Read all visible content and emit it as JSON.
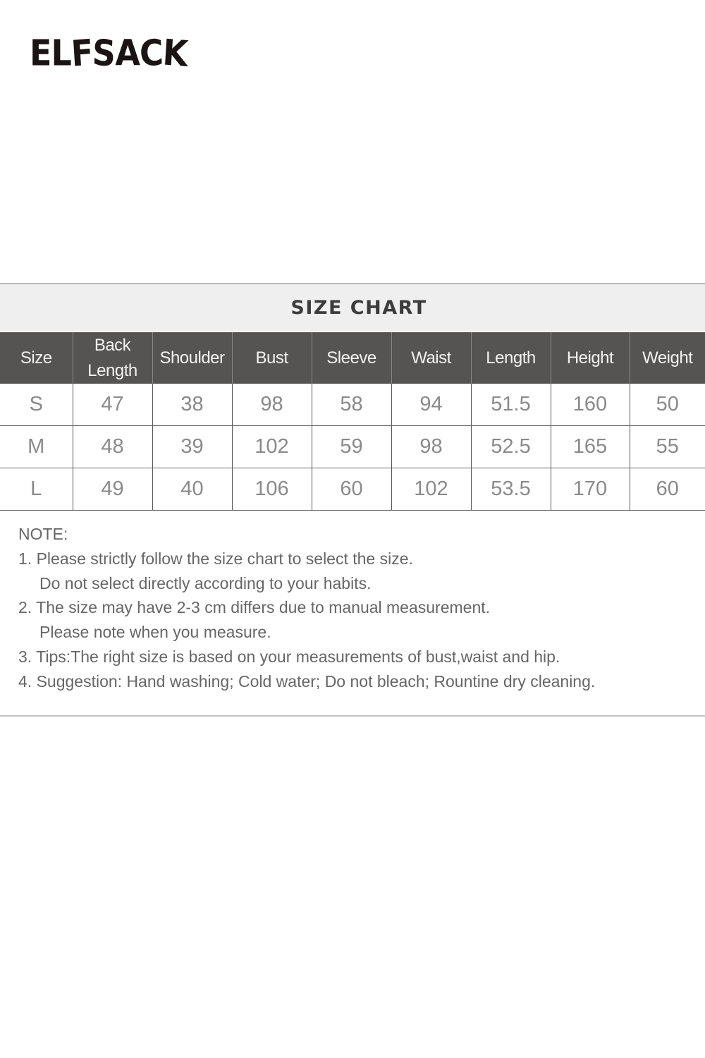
{
  "brand": {
    "logo_text": "ELFSACK"
  },
  "chart": {
    "title": "SIZE CHART",
    "headers": [
      "Size",
      "Back Length",
      "Shoulder",
      "Bust",
      "Sleeve",
      "Waist",
      "Length",
      "Height",
      "Weight"
    ],
    "rows": [
      [
        "S",
        "47",
        "38",
        "98",
        "58",
        "94",
        "51.5",
        "160",
        "50"
      ],
      [
        "M",
        "48",
        "39",
        "102",
        "59",
        "98",
        "52.5",
        "165",
        "55"
      ],
      [
        "L",
        "49",
        "40",
        "106",
        "60",
        "102",
        "53.5",
        "170",
        "60"
      ]
    ]
  },
  "notes": {
    "heading": "NOTE:",
    "lines": [
      "1. Please strictly follow the size chart to select the size.",
      "Do not select directly according to your habits.",
      "2. The size may have 2-3 cm differs due to manual measurement.",
      "Please note when you measure.",
      "3. Tips:The right size is based on your measurements of bust,waist and hip.",
      "4. Suggestion: Hand washing; Cold water; Do not bleach; Rountine dry cleaning."
    ]
  }
}
